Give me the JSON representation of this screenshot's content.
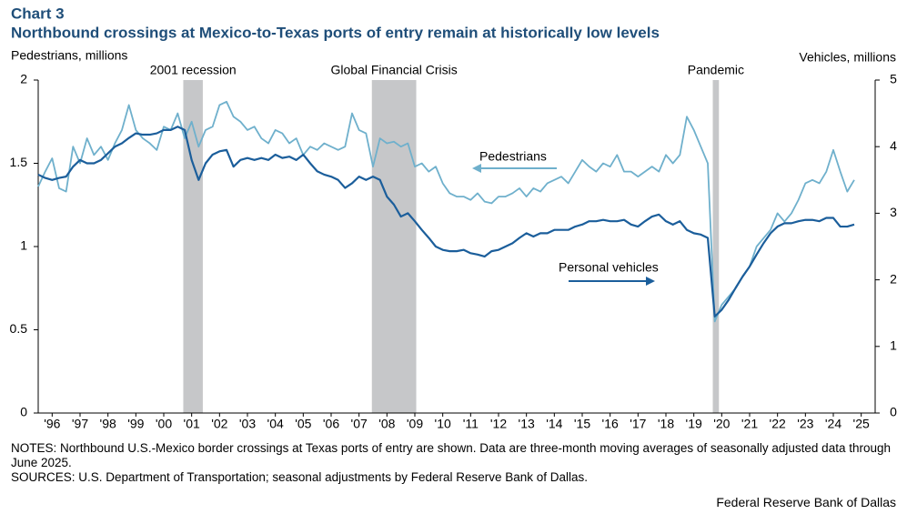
{
  "chart_data": {
    "type": "line",
    "chart_label": "Chart 3",
    "title": "Northbound crossings at Mexico-to-Texas ports of entry remain at historically low levels",
    "ylabel": "Pedestrians, millions",
    "y2label": "Vehicles, millions",
    "notes": "NOTES: Northbound U.S.-Mexico border crossings at Texas ports of entry are shown. Data are three-month moving averages of seasonally adjusted data through June 2025.",
    "sources": "SOURCES: U.S. Department of Transportation; seasonal adjustments by Federal Reserve Bank of Dallas.",
    "credit": "Federal Reserve Bank of Dallas",
    "xlim": [
      1996,
      2026
    ],
    "ylim": [
      0,
      2
    ],
    "yticks": [
      0,
      0.5,
      1,
      1.5,
      2
    ],
    "y2lim": [
      0,
      5
    ],
    "y2ticks": [
      0,
      1,
      2,
      3,
      4,
      5
    ],
    "xticks": [
      {
        "value": 1996.5,
        "label": "'96"
      },
      {
        "value": 1997.5,
        "label": "'97"
      },
      {
        "value": 1998.5,
        "label": "'98"
      },
      {
        "value": 1999.5,
        "label": "'99"
      },
      {
        "value": 2000.5,
        "label": "'00"
      },
      {
        "value": 2001.5,
        "label": "'01"
      },
      {
        "value": 2002.5,
        "label": "'02"
      },
      {
        "value": 2003.5,
        "label": "'03"
      },
      {
        "value": 2004.5,
        "label": "'04"
      },
      {
        "value": 2005.5,
        "label": "'05"
      },
      {
        "value": 2006.5,
        "label": "'06"
      },
      {
        "value": 2007.5,
        "label": "'07"
      },
      {
        "value": 2008.5,
        "label": "'08"
      },
      {
        "value": 2009.5,
        "label": "'09"
      },
      {
        "value": 2010.5,
        "label": "'10"
      },
      {
        "value": 2011.5,
        "label": "'11"
      },
      {
        "value": 2012.5,
        "label": "'12"
      },
      {
        "value": 2013.5,
        "label": "'13"
      },
      {
        "value": 2014.5,
        "label": "'14"
      },
      {
        "value": 2015.5,
        "label": "'15"
      },
      {
        "value": 2016.5,
        "label": "'16"
      },
      {
        "value": 2017.5,
        "label": "'17"
      },
      {
        "value": 2018.5,
        "label": "'18"
      },
      {
        "value": 2019.5,
        "label": "'19"
      },
      {
        "value": 2020.5,
        "label": "'20"
      },
      {
        "value": 2021.5,
        "label": "'21"
      },
      {
        "value": 2022.5,
        "label": "'22"
      },
      {
        "value": 2023.5,
        "label": "'23"
      },
      {
        "value": 2024.5,
        "label": "'24"
      },
      {
        "value": 2025.5,
        "label": "'25"
      }
    ],
    "shaded_periods": [
      {
        "label": "2001 recession",
        "start": 2001.2,
        "end": 2001.9
      },
      {
        "label": "Global Financial Crisis",
        "start": 2007.96,
        "end": 2009.55
      },
      {
        "label": "Pandemic",
        "start": 2020.18,
        "end": 2020.4
      }
    ],
    "shade_color": "#c6c7c9",
    "x": [
      1996,
      1996.25,
      1996.5,
      1996.75,
      1997,
      1997.25,
      1997.5,
      1997.75,
      1998,
      1998.25,
      1998.5,
      1998.75,
      1999,
      1999.25,
      1999.5,
      1999.75,
      2000,
      2000.25,
      2000.5,
      2000.75,
      2001,
      2001.25,
      2001.5,
      2001.75,
      2002,
      2002.25,
      2002.5,
      2002.75,
      2003,
      2003.25,
      2003.5,
      2003.75,
      2004,
      2004.25,
      2004.5,
      2004.75,
      2005,
      2005.25,
      2005.5,
      2005.75,
      2006,
      2006.25,
      2006.5,
      2006.75,
      2007,
      2007.25,
      2007.5,
      2007.75,
      2008,
      2008.25,
      2008.5,
      2008.75,
      2009,
      2009.25,
      2009.5,
      2009.75,
      2010,
      2010.25,
      2010.5,
      2010.75,
      2011,
      2011.25,
      2011.5,
      2011.75,
      2012,
      2012.25,
      2012.5,
      2012.75,
      2013,
      2013.25,
      2013.5,
      2013.75,
      2014,
      2014.25,
      2014.5,
      2014.75,
      2015,
      2015.25,
      2015.5,
      2015.75,
      2016,
      2016.25,
      2016.5,
      2016.75,
      2017,
      2017.25,
      2017.5,
      2017.75,
      2018,
      2018.25,
      2018.5,
      2018.75,
      2019,
      2019.25,
      2019.5,
      2019.75,
      2020,
      2020.25,
      2020.5,
      2020.75,
      2021,
      2021.25,
      2021.5,
      2021.75,
      2022,
      2022.25,
      2022.5,
      2022.75,
      2023,
      2023.25,
      2023.5,
      2023.75,
      2024,
      2024.25,
      2024.5,
      2024.75,
      2025,
      2025.25
    ],
    "series": [
      {
        "name": "Pedestrians",
        "color": "#6fb0cc",
        "axis": "y",
        "values": [
          1.36,
          1.45,
          1.53,
          1.35,
          1.33,
          1.6,
          1.5,
          1.65,
          1.55,
          1.6,
          1.52,
          1.62,
          1.7,
          1.85,
          1.7,
          1.65,
          1.62,
          1.58,
          1.72,
          1.7,
          1.8,
          1.65,
          1.75,
          1.6,
          1.7,
          1.72,
          1.85,
          1.87,
          1.78,
          1.75,
          1.7,
          1.72,
          1.65,
          1.62,
          1.7,
          1.68,
          1.62,
          1.65,
          1.55,
          1.6,
          1.58,
          1.62,
          1.6,
          1.58,
          1.6,
          1.8,
          1.7,
          1.68,
          1.48,
          1.65,
          1.62,
          1.63,
          1.6,
          1.62,
          1.48,
          1.5,
          1.45,
          1.48,
          1.38,
          1.32,
          1.3,
          1.3,
          1.28,
          1.32,
          1.27,
          1.26,
          1.3,
          1.3,
          1.32,
          1.35,
          1.3,
          1.35,
          1.33,
          1.38,
          1.4,
          1.42,
          1.38,
          1.45,
          1.52,
          1.48,
          1.45,
          1.5,
          1.48,
          1.55,
          1.45,
          1.45,
          1.42,
          1.45,
          1.48,
          1.45,
          1.55,
          1.5,
          1.55,
          1.78,
          1.7,
          1.6,
          1.5,
          0.55,
          0.65,
          0.7,
          0.75,
          0.82,
          0.88,
          1.0,
          1.05,
          1.1,
          1.2,
          1.15,
          1.2,
          1.28,
          1.38,
          1.4,
          1.38,
          1.45,
          1.58,
          1.45,
          1.33,
          1.4
        ]
      },
      {
        "name": "Personal vehicles",
        "color": "#1b5e9b",
        "axis": "y2",
        "values": [
          3.58,
          3.53,
          3.5,
          3.53,
          3.55,
          3.7,
          3.8,
          3.75,
          3.75,
          3.8,
          3.9,
          4.0,
          4.05,
          4.13,
          4.2,
          4.18,
          4.18,
          4.2,
          4.25,
          4.25,
          4.3,
          4.25,
          3.8,
          3.5,
          3.75,
          3.88,
          3.93,
          3.95,
          3.7,
          3.8,
          3.83,
          3.8,
          3.83,
          3.8,
          3.88,
          3.83,
          3.85,
          3.8,
          3.88,
          3.75,
          3.63,
          3.58,
          3.55,
          3.5,
          3.38,
          3.45,
          3.55,
          3.5,
          3.55,
          3.5,
          3.25,
          3.13,
          2.95,
          3.0,
          2.88,
          2.75,
          2.63,
          2.5,
          2.45,
          2.43,
          2.43,
          2.45,
          2.4,
          2.38,
          2.35,
          2.43,
          2.45,
          2.5,
          2.55,
          2.63,
          2.7,
          2.65,
          2.7,
          2.7,
          2.75,
          2.75,
          2.75,
          2.8,
          2.83,
          2.88,
          2.88,
          2.9,
          2.88,
          2.88,
          2.9,
          2.83,
          2.8,
          2.88,
          2.95,
          2.98,
          2.88,
          2.83,
          2.88,
          2.75,
          2.7,
          2.68,
          2.63,
          1.45,
          1.55,
          1.7,
          1.88,
          2.05,
          2.2,
          2.38,
          2.55,
          2.7,
          2.8,
          2.85,
          2.85,
          2.88,
          2.9,
          2.9,
          2.88,
          2.93,
          2.93,
          2.8,
          2.8,
          2.83
        ]
      }
    ]
  }
}
